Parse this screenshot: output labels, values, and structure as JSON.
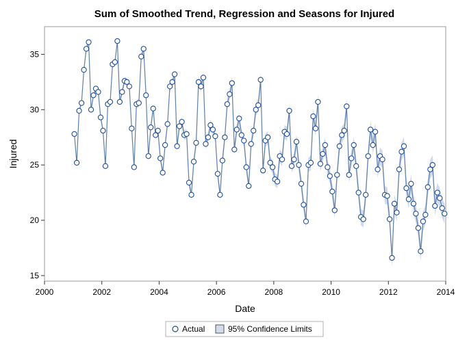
{
  "chart_data": {
    "type": "scatter",
    "title": "Sum of Smoothed Trend, Regression and Seasons for Injured",
    "xlabel": "Date",
    "ylabel": "Injured",
    "xlim": [
      2000,
      2014
    ],
    "ylim": [
      14.5,
      37.5
    ],
    "xticks": [
      2000,
      2002,
      2004,
      2006,
      2008,
      2010,
      2012,
      2014
    ],
    "yticks": [
      15,
      20,
      25,
      30,
      35
    ],
    "grid": false,
    "legend_position": "bottom",
    "legend": [
      "Actual",
      "95% Confidence Limits"
    ],
    "series": [
      {
        "name": "Actual",
        "start_year": 2001,
        "interval": "monthly",
        "values": [
          27.8,
          25.2,
          29.9,
          30.6,
          33.6,
          35.5,
          36.1,
          30.0,
          31.3,
          31.9,
          31.6,
          29.3,
          28.1,
          24.9,
          30.5,
          30.7,
          34.1,
          34.3,
          36.2,
          30.7,
          31.6,
          32.6,
          32.5,
          32.1,
          28.3,
          24.8,
          30.5,
          30.6,
          34.8,
          35.5,
          31.3,
          25.8,
          28.4,
          30.1,
          27.7,
          28.1,
          25.6,
          24.3,
          26.8,
          28.7,
          32.1,
          32.5,
          33.2,
          26.7,
          28.5,
          28.9,
          27.7,
          27.8,
          23.4,
          22.3,
          25.3,
          27.0,
          32.5,
          32.1,
          32.9,
          26.9,
          27.5,
          28.6,
          28.2,
          27.6,
          24.2,
          22.3,
          25.4,
          27.5,
          30.5,
          31.4,
          32.4,
          26.4,
          28.2,
          29.2,
          27.7,
          27.2,
          24.8,
          23.1,
          26.9,
          28.1,
          30.0,
          30.4,
          32.7,
          24.5,
          27.2,
          27.5,
          25.2,
          24.8,
          23.7,
          23.5,
          25.8,
          25.5,
          28.0,
          27.8,
          29.9,
          24.9,
          25.5,
          27.1,
          25.0,
          23.3,
          21.4,
          19.9,
          25.0,
          25.2,
          29.4,
          28.3,
          30.7,
          25.1,
          26.0,
          26.8,
          24.8,
          24.0,
          22.6,
          20.9,
          24.1,
          26.7,
          27.7,
          28.1,
          30.3,
          24.1,
          25.6,
          26.8,
          24.9,
          22.5,
          20.3,
          20.1,
          22.3,
          25.8,
          28.2,
          26.8,
          28.0,
          24.6,
          25.8,
          25.5,
          22.3,
          22.2,
          20.1,
          16.6,
          21.5,
          20.7,
          24.6,
          26.2,
          26.7,
          22.9,
          21.9,
          23.3,
          21.5,
          20.6,
          19.3,
          17.2,
          19.9,
          20.5,
          23.0,
          24.6,
          25.0,
          21.3,
          22.5,
          22.0,
          21.1,
          20.6
        ]
      },
      {
        "name": "95% Confidence Limits",
        "band_half_width_start": 0.25,
        "band_half_width_end": 0.9
      }
    ]
  }
}
